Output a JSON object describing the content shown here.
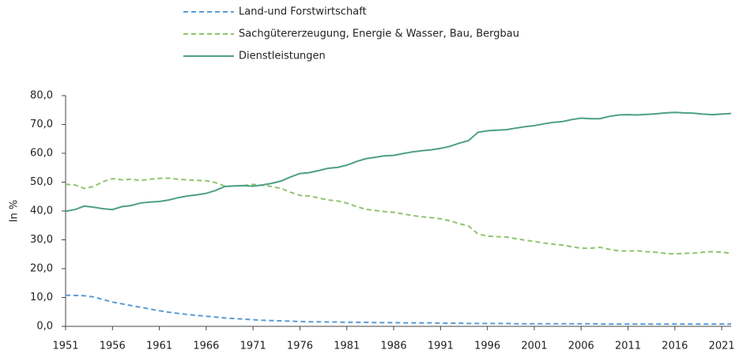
{
  "chart_data": {
    "type": "line",
    "y_label": "In %",
    "x": [
      1951,
      1952,
      1953,
      1954,
      1955,
      1956,
      1957,
      1958,
      1959,
      1960,
      1961,
      1962,
      1963,
      1964,
      1965,
      1966,
      1967,
      1968,
      1969,
      1970,
      1971,
      1972,
      1973,
      1974,
      1975,
      1976,
      1977,
      1978,
      1979,
      1980,
      1981,
      1982,
      1983,
      1984,
      1985,
      1986,
      1987,
      1988,
      1989,
      1990,
      1991,
      1992,
      1993,
      1994,
      1995,
      1996,
      1997,
      1998,
      1999,
      2000,
      2001,
      2002,
      2003,
      2004,
      2005,
      2006,
      2007,
      2008,
      2009,
      2010,
      2011,
      2012,
      2013,
      2014,
      2015,
      2016,
      2017,
      2018,
      2019,
      2020,
      2021,
      2022
    ],
    "xlim": [
      1951,
      2022
    ],
    "xticks": [
      1951,
      1956,
      1961,
      1966,
      1971,
      1976,
      1981,
      1986,
      1991,
      1996,
      2001,
      2006,
      2011,
      2016,
      2021
    ],
    "ylim": [
      0,
      80
    ],
    "yticks": [
      {
        "value": 0,
        "label": "0,0"
      },
      {
        "value": 10,
        "label": "10,0"
      },
      {
        "value": 20,
        "label": "20,0"
      },
      {
        "value": 30,
        "label": "30,0"
      },
      {
        "value": 40,
        "label": "40,0"
      },
      {
        "value": 50,
        "label": "50,0"
      },
      {
        "value": 60,
        "label": "60,0"
      },
      {
        "value": 70,
        "label": "70,0"
      },
      {
        "value": 80,
        "label": "80,0"
      }
    ],
    "series": [
      {
        "name": "Land-und Forstwirtschaft",
        "color": "#5b9bd5",
        "dash": true,
        "values": [
          10.8,
          10.7,
          10.6,
          10.2,
          9.3,
          8.4,
          7.8,
          7.2,
          6.6,
          6.0,
          5.4,
          4.9,
          4.5,
          4.1,
          3.8,
          3.5,
          3.2,
          2.9,
          2.7,
          2.5,
          2.3,
          2.1,
          2.0,
          1.9,
          1.8,
          1.7,
          1.6,
          1.6,
          1.5,
          1.5,
          1.4,
          1.4,
          1.4,
          1.3,
          1.3,
          1.3,
          1.2,
          1.2,
          1.2,
          1.2,
          1.1,
          1.1,
          1.1,
          1.0,
          1.0,
          1.0,
          1.0,
          1.0,
          0.9,
          0.9,
          0.9,
          0.9,
          0.9,
          0.9,
          0.9,
          0.9,
          0.9,
          0.8,
          0.8,
          0.8,
          0.8,
          0.8,
          0.8,
          0.8,
          0.8,
          0.8,
          0.8,
          0.8,
          0.8,
          0.8,
          0.8,
          0.8
        ]
      },
      {
        "name": "Sachgütererzeugung, Energie & Wasser, Bau, Bergbau",
        "color": "#8fc46e",
        "dash": true,
        "values": [
          49.3,
          49.0,
          47.8,
          48.5,
          50.2,
          51.2,
          50.8,
          51.0,
          50.6,
          51.0,
          51.3,
          51.4,
          51.0,
          50.8,
          50.6,
          50.5,
          49.8,
          48.6,
          48.6,
          48.8,
          49.2,
          48.9,
          48.5,
          47.8,
          46.5,
          45.4,
          45.2,
          44.5,
          43.8,
          43.5,
          42.7,
          41.6,
          40.6,
          40.2,
          39.8,
          39.5,
          39.0,
          38.4,
          38.0,
          37.7,
          37.3,
          36.6,
          35.6,
          34.8,
          32.0,
          31.3,
          31.1,
          31.0,
          30.4,
          29.9,
          29.4,
          28.9,
          28.5,
          28.2,
          27.6,
          27.1,
          27.1,
          27.4,
          26.7,
          26.2,
          26.1,
          26.2,
          25.9,
          25.7,
          25.3,
          25.1,
          25.3,
          25.4,
          25.7,
          25.9,
          25.7,
          25.4
        ]
      },
      {
        "name": "Dienstleistungen",
        "color": "#4e9f86",
        "dash": false,
        "values": [
          39.9,
          40.5,
          41.7,
          41.3,
          40.8,
          40.5,
          41.5,
          41.9,
          42.8,
          43.1,
          43.3,
          43.8,
          44.6,
          45.2,
          45.6,
          46.1,
          47.1,
          48.5,
          48.7,
          48.8,
          48.6,
          49.0,
          49.6,
          50.4,
          51.8,
          53.0,
          53.3,
          54.0,
          54.8,
          55.1,
          55.9,
          57.1,
          58.1,
          58.6,
          59.1,
          59.3,
          59.9,
          60.5,
          60.9,
          61.2,
          61.7,
          62.4,
          63.5,
          64.4,
          67.3,
          67.8,
          68.0,
          68.2,
          68.7,
          69.2,
          69.6,
          70.2,
          70.7,
          71.0,
          71.7,
          72.2,
          72.0,
          72.0,
          72.8,
          73.3,
          73.4,
          73.3,
          73.5,
          73.7,
          74.0,
          74.2,
          74.0,
          73.9,
          73.6,
          73.4,
          73.6,
          73.8
        ]
      }
    ]
  }
}
